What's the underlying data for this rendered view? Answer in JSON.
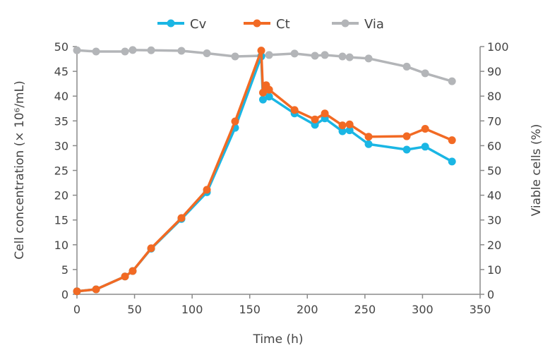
{
  "chart_data": {
    "type": "line",
    "title": "",
    "xlabel": "Time (h)",
    "ylabel": "Cell concentration (× 10⁶/mL)",
    "y2label": "Viable cells (%)",
    "xlim": [
      0,
      350
    ],
    "ylim": [
      0,
      50
    ],
    "y2lim": [
      0,
      100
    ],
    "xticks": [
      0,
      50,
      100,
      150,
      200,
      250,
      300,
      350
    ],
    "yticks": [
      0,
      5,
      10,
      15,
      20,
      25,
      30,
      35,
      40,
      45,
      50
    ],
    "y2ticks": [
      0,
      10,
      20,
      30,
      40,
      50,
      60,
      70,
      80,
      90,
      100
    ],
    "grid": false,
    "legend": "top",
    "series": [
      {
        "name": "Cv",
        "axis": "left",
        "color": "#1ab6e4",
        "x": [
          0,
          16.6,
          41.7,
          48.4,
          64.4,
          90.7,
          112.8,
          137.3,
          160,
          161.5,
          166.8,
          188.9,
          206.6,
          215.2,
          230.5,
          236.7,
          253.2,
          286.3,
          302.3,
          325.6
        ],
        "y": [
          0.6,
          1.0,
          3.6,
          4.7,
          9.2,
          15.2,
          20.6,
          33.6,
          48.0,
          39.3,
          39.9,
          36.5,
          34.2,
          35.5,
          32.9,
          33.1,
          30.3,
          29.2,
          29.8,
          26.8
        ]
      },
      {
        "name": "Ct",
        "axis": "left",
        "color": "#f26a24",
        "x": [
          0,
          16.6,
          41.7,
          48.4,
          64.4,
          90.7,
          112.8,
          137.3,
          160,
          161.5,
          164.3,
          166.8,
          188.9,
          206.6,
          215.2,
          230.5,
          236.7,
          253.2,
          286.3,
          302.3,
          325.6
        ],
        "y": [
          0.6,
          1.0,
          3.6,
          4.7,
          9.3,
          15.4,
          21.1,
          34.9,
          49.2,
          40.7,
          42.2,
          41.3,
          37.2,
          35.3,
          36.5,
          34.1,
          34.3,
          31.8,
          31.9,
          33.4,
          31.1
        ]
      },
      {
        "name": "Via",
        "axis": "right",
        "color": "#b3b5b8",
        "x": [
          0,
          16.6,
          41.7,
          48.4,
          64.4,
          90.7,
          112.8,
          137.3,
          160,
          166.8,
          188.9,
          206.6,
          215.2,
          230.5,
          236.7,
          253.2,
          286.3,
          302.3,
          325.6
        ],
        "y": [
          98.5,
          98.0,
          98.0,
          98.6,
          98.5,
          98.3,
          97.3,
          96.0,
          96.3,
          96.6,
          97.2,
          96.3,
          96.6,
          96.0,
          95.7,
          95.2,
          91.9,
          89.2,
          86.0
        ]
      }
    ]
  }
}
